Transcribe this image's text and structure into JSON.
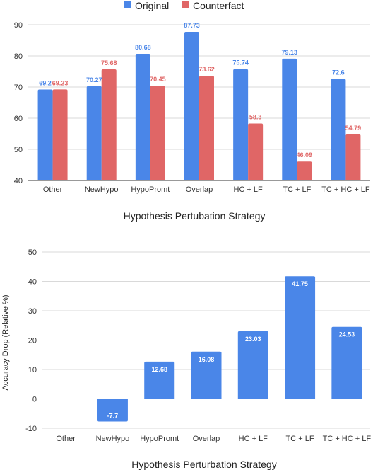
{
  "chart_data": [
    {
      "type": "bar",
      "categories": [
        "Other",
        "NewHypo",
        "HypoPromt",
        "Overlap",
        "HC + LF",
        "TC + LF",
        "TC + HC + LF"
      ],
      "series": [
        {
          "name": "Original",
          "values": [
            69.2,
            70.27,
            80.68,
            87.73,
            75.74,
            79.13,
            72.6
          ],
          "labels": [
            "69.2",
            "70.27",
            "80.68",
            "87.73",
            "75.74",
            "79.13",
            "72.6"
          ],
          "color": "#4a86e8"
        },
        {
          "name": "Counterfact",
          "values": [
            69.23,
            75.68,
            70.45,
            73.62,
            58.3,
            46.09,
            54.79
          ],
          "labels": [
            "69.23",
            "75.68",
            "70.45",
            "73.62",
            "58.3",
            "46.09",
            "54.79"
          ],
          "color": "#e06666"
        }
      ],
      "xlabel": "Hypothesis Pertubation Strategy",
      "ylabel": "",
      "ylim": [
        40,
        90
      ],
      "yticks": [
        40,
        50,
        60,
        70,
        80,
        90
      ],
      "legend": "top-center",
      "grid": true
    },
    {
      "type": "bar",
      "categories": [
        "Other",
        "NewHypo",
        "HypoPromt",
        "Overlap",
        "HC + LF",
        "TC + LF",
        "TC + HC + LF"
      ],
      "series": [
        {
          "name": "",
          "values": [
            0,
            -7.7,
            12.68,
            16.08,
            23.03,
            41.75,
            24.53
          ],
          "labels": [
            "",
            "-7.7",
            "12.68",
            "16.08",
            "23.03",
            "41.75",
            "24.53"
          ],
          "color": "#4a86e8"
        }
      ],
      "xlabel": "Hypothesis Perturbation Strategy",
      "ylabel": "Accuracy Drop (Relative %)",
      "ylim": [
        -10,
        50
      ],
      "yticks": [
        -10,
        0,
        10,
        20,
        30,
        40,
        50
      ],
      "legend": "none",
      "grid": true
    }
  ]
}
